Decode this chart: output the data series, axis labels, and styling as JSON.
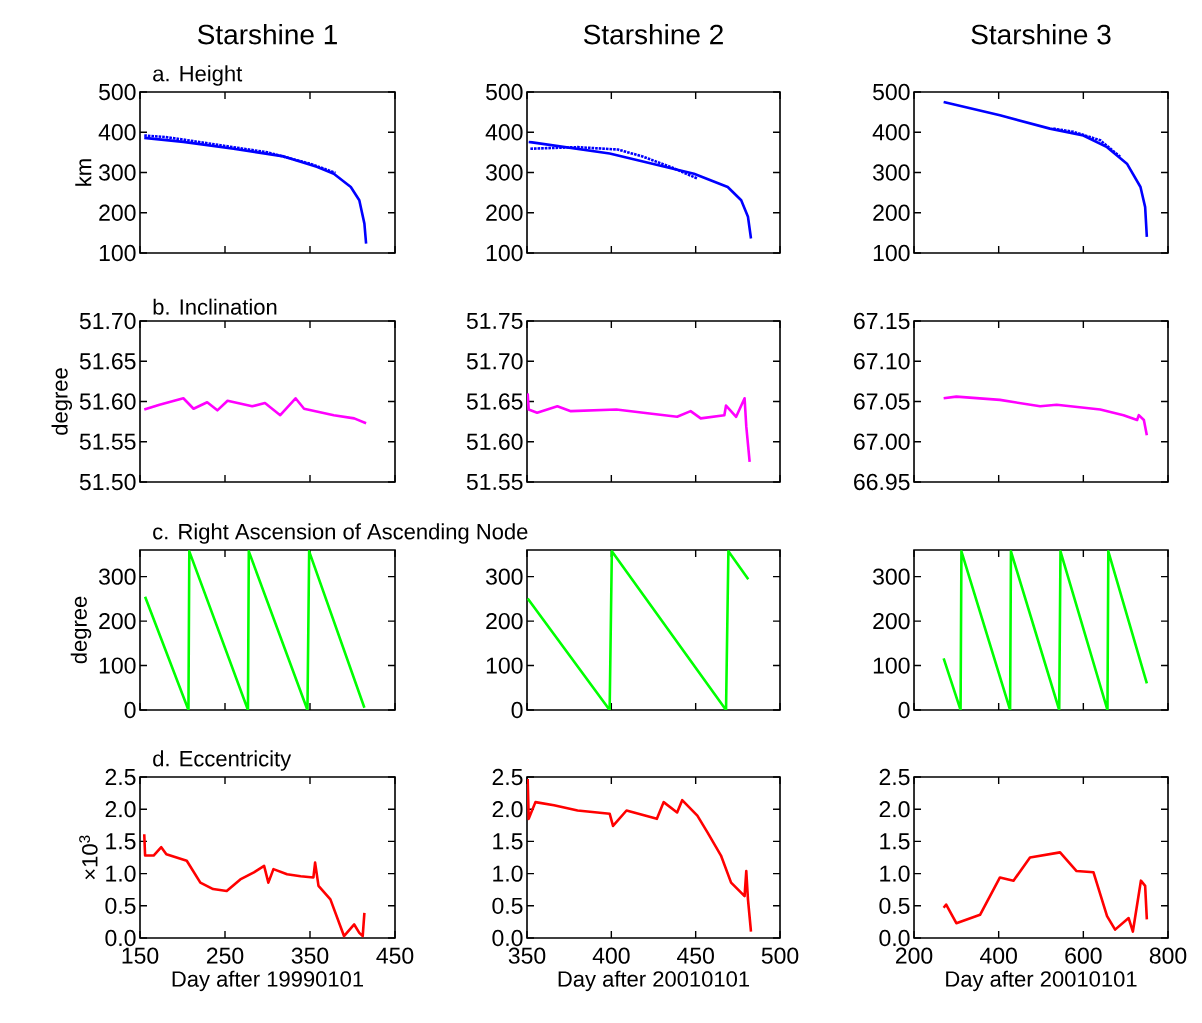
{
  "chart_data": [
    {
      "type": "line",
      "title": "Starshine 1",
      "subtitle": "a. Height",
      "ylabel": "km",
      "xlim": [
        150,
        450
      ],
      "xticks": [
        150,
        250,
        350,
        450
      ],
      "ylim": [
        100,
        500
      ],
      "yticks": [
        100,
        200,
        300,
        400,
        500
      ],
      "tick_labels": "y",
      "series": [
        {
          "color": "#0000ff",
          "line_style": "solid",
          "x": [
            155,
            201,
            260,
            319,
            358,
            378,
            398,
            408,
            414,
            416
          ],
          "values": [
            386,
            376,
            359,
            340,
            314,
            297,
            264,
            231,
            173,
            123
          ]
        },
        {
          "color": "#0000ff",
          "line_style": "dotted",
          "x": [
            155,
            180,
            200,
            250,
            300,
            350,
            380
          ],
          "values": [
            392,
            388,
            382,
            366,
            350,
            322,
            299
          ]
        }
      ]
    },
    {
      "type": "line",
      "title": "Starshine 2",
      "xlim": [
        350,
        500
      ],
      "xticks": [
        350,
        400,
        450,
        500
      ],
      "ylim": [
        100,
        500
      ],
      "yticks": [
        100,
        200,
        300,
        400,
        500
      ],
      "tick_labels": "y",
      "series": [
        {
          "color": "#0000ff",
          "line_style": "solid",
          "x": [
            351,
            399,
            449,
            469,
            477,
            481,
            482.8
          ],
          "values": [
            376,
            347,
            297,
            264,
            231,
            190,
            136
          ]
        },
        {
          "color": "#0000ff",
          "line_style": "dotted",
          "x": [
            352,
            380,
            404,
            419,
            435,
            451
          ],
          "values": [
            359,
            363,
            357,
            339,
            314,
            285
          ]
        }
      ]
    },
    {
      "type": "line",
      "title": "Starshine 3",
      "xlim": [
        200,
        800
      ],
      "xticks": [
        200,
        400,
        600,
        800
      ],
      "ylim": [
        100,
        500
      ],
      "yticks": [
        100,
        200,
        300,
        400,
        500
      ],
      "tick_labels": "y",
      "series": [
        {
          "color": "#0000ff",
          "line_style": "solid",
          "x": [
            270,
            403,
            521,
            600,
            656,
            703,
            735,
            746,
            750
          ],
          "values": [
            475,
            442,
            409,
            392,
            363,
            322,
            264,
            214,
            140
          ]
        },
        {
          "color": "#0000ff",
          "line_style": "dotted",
          "x": [
            529,
            577,
            640,
            687
          ],
          "values": [
            409,
            401,
            380,
            339
          ]
        }
      ]
    },
    {
      "type": "line",
      "subtitle": "b. Inclination",
      "ylabel": "degree",
      "xlim": [
        150,
        450
      ],
      "xticks": [
        150,
        250,
        350,
        450
      ],
      "ylim": [
        51.5,
        51.7
      ],
      "yticks": [
        {
          "value": 51.5,
          "label": "51.50"
        },
        51.55,
        {
          "value": 51.6,
          "label": "51.60"
        },
        51.65,
        {
          "value": 51.7,
          "label": "51.70"
        }
      ],
      "tick_labels": "y",
      "series": [
        {
          "color": "#ff00ff",
          "x": [
            155,
            173,
            201,
            213,
            229,
            241,
            253,
            282,
            297,
            315,
            333,
            343,
            378,
            402,
            416
          ],
          "values": [
            51.59,
            51.596,
            51.604,
            51.591,
            51.599,
            51.589,
            51.601,
            51.594,
            51.598,
            51.583,
            51.604,
            51.591,
            51.583,
            51.579,
            51.573
          ]
        }
      ]
    },
    {
      "type": "line",
      "xlim": [
        350,
        500
      ],
      "xticks": [
        350,
        400,
        450,
        500
      ],
      "ylim": [
        51.55,
        51.75
      ],
      "yticks": [
        51.55,
        {
          "value": 51.6,
          "label": "51.60"
        },
        51.65,
        {
          "value": 51.7,
          "label": "51.70"
        },
        51.75
      ],
      "tick_labels": "y",
      "series": [
        {
          "color": "#ff00ff",
          "x": [
            350.4,
            351,
            356,
            368,
            376,
            403,
            419,
            439,
            447,
            453,
            467,
            468,
            474,
            479,
            480,
            482
          ],
          "values": [
            51.66,
            51.64,
            51.636,
            51.644,
            51.638,
            51.64,
            51.636,
            51.631,
            51.638,
            51.629,
            51.633,
            51.645,
            51.631,
            51.654,
            51.619,
            51.575
          ]
        }
      ]
    },
    {
      "type": "line",
      "xlim": [
        200,
        800
      ],
      "xticks": [
        200,
        400,
        600,
        800
      ],
      "ylim": [
        66.95,
        67.15
      ],
      "yticks": [
        66.95,
        {
          "value": 67.0,
          "label": "67.00"
        },
        67.05,
        {
          "value": 67.1,
          "label": "67.10"
        },
        67.15
      ],
      "tick_labels": "y",
      "series": [
        {
          "color": "#ff00ff",
          "x": [
            270,
            300,
            403,
            498,
            537,
            640,
            695,
            727,
            731,
            743,
            750
          ],
          "values": [
            67.054,
            67.056,
            67.052,
            67.044,
            67.046,
            67.04,
            67.033,
            67.027,
            67.033,
            67.027,
            67.008
          ]
        }
      ]
    },
    {
      "type": "line",
      "subtitle": "c. Right Ascension of Ascending Node",
      "ylabel": "degree",
      "xlim": [
        150,
        450
      ],
      "xticks": [
        150,
        250,
        350,
        450
      ],
      "ylim": [
        0,
        360
      ],
      "yticks": [
        0,
        100,
        200,
        300
      ],
      "tick_labels": "y",
      "series": [
        {
          "color": "#00ff00",
          "x": [
            156,
            207,
            208,
            277,
            278,
            347,
            349,
            414
          ],
          "values": [
            255,
            0,
            357,
            0,
            357,
            0,
            357,
            5
          ]
        }
      ]
    },
    {
      "type": "line",
      "xlim": [
        350,
        500
      ],
      "xticks": [
        350,
        400,
        450,
        500
      ],
      "ylim": [
        0,
        360
      ],
      "yticks": [
        0,
        100,
        200,
        300
      ],
      "tick_labels": "y",
      "series": [
        {
          "color": "#00ff00",
          "x": [
            350.4,
            399,
            400.3,
            468,
            469.4,
            481.2
          ],
          "values": [
            251,
            0,
            357,
            0,
            357,
            294
          ]
        }
      ]
    },
    {
      "type": "line",
      "xlim": [
        200,
        800
      ],
      "xticks": [
        200,
        400,
        600,
        800
      ],
      "ylim": [
        0,
        360
      ],
      "yticks": [
        0,
        100,
        200,
        300
      ],
      "tick_labels": "y",
      "series": [
        {
          "color": "#00ff00",
          "x": [
            270,
            310,
            312,
            427,
            429,
            543,
            546,
            657,
            659,
            750
          ],
          "values": [
            116,
            0,
            357,
            0,
            357,
            0,
            357,
            0,
            357,
            60
          ]
        }
      ]
    },
    {
      "type": "line",
      "subtitle": "d. Eccentricity",
      "ylabel": "×10$^{3}$",
      "xlabel": "Day after 19990101",
      "xlim": [
        150,
        450
      ],
      "xticks": [
        150,
        250,
        350,
        450
      ],
      "ylim": [
        0,
        2.5
      ],
      "yticks": [
        {
          "value": 0,
          "label": "0.0"
        },
        0.5,
        {
          "value": 1,
          "label": "1.0"
        },
        1.5,
        {
          "value": 2,
          "label": "2.0"
        },
        2.5
      ],
      "series": [
        {
          "color": "#ff0000",
          "x": [
            155,
            156,
            166,
            175,
            181,
            205,
            221,
            236,
            252,
            268,
            284,
            296,
            301,
            307,
            323,
            339,
            354,
            356,
            360,
            374,
            390,
            402,
            408,
            412,
            414
          ],
          "values": [
            1.61,
            1.28,
            1.28,
            1.41,
            1.3,
            1.2,
            0.86,
            0.76,
            0.73,
            0.91,
            1.02,
            1.12,
            0.86,
            1.07,
            0.99,
            0.96,
            0.94,
            1.17,
            0.81,
            0.6,
            0.03,
            0.21,
            0.08,
            0.03,
            0.39
          ]
        }
      ]
    },
    {
      "type": "line",
      "xlabel": "Day after 20010101",
      "xlim": [
        350,
        500
      ],
      "xticks": [
        350,
        400,
        450,
        500
      ],
      "ylim": [
        0,
        2.5
      ],
      "yticks": [
        {
          "value": 0,
          "label": "0.0"
        },
        0.5,
        {
          "value": 1,
          "label": "1.0"
        },
        1.5,
        {
          "value": 2,
          "label": "2.0"
        },
        2.5
      ],
      "series": [
        {
          "color": "#ff0000",
          "x": [
            350.4,
            351,
            355,
            366,
            380,
            399,
            401,
            409,
            427,
            431,
            439,
            442,
            451,
            457,
            465,
            471,
            479,
            480,
            481,
            482.8
          ],
          "values": [
            2.47,
            1.85,
            2.11,
            2.06,
            1.98,
            1.93,
            1.74,
            1.98,
            1.85,
            2.11,
            1.95,
            2.14,
            1.9,
            1.64,
            1.28,
            0.86,
            0.65,
            1.04,
            0.6,
            0.1
          ]
        }
      ]
    },
    {
      "type": "line",
      "xlabel": "Day after 20010101",
      "xlim": [
        200,
        800
      ],
      "xticks": [
        200,
        400,
        600,
        800
      ],
      "ylim": [
        0,
        2.5
      ],
      "yticks": [
        {
          "value": 0,
          "label": "0.0"
        },
        0.5,
        {
          "value": 1,
          "label": "1.0"
        },
        1.5,
        {
          "value": 2,
          "label": "2.0"
        },
        2.5
      ],
      "series": [
        {
          "color": "#ff0000",
          "x": [
            270,
            276,
            300,
            356,
            403,
            435,
            474,
            545,
            584,
            624,
            656,
            675,
            707,
            717,
            736,
            746,
            750
          ],
          "values": [
            0.47,
            0.52,
            0.23,
            0.36,
            0.94,
            0.89,
            1.25,
            1.33,
            1.04,
            1.02,
            0.34,
            0.13,
            0.31,
            0.1,
            0.89,
            0.81,
            0.29
          ]
        }
      ]
    }
  ]
}
